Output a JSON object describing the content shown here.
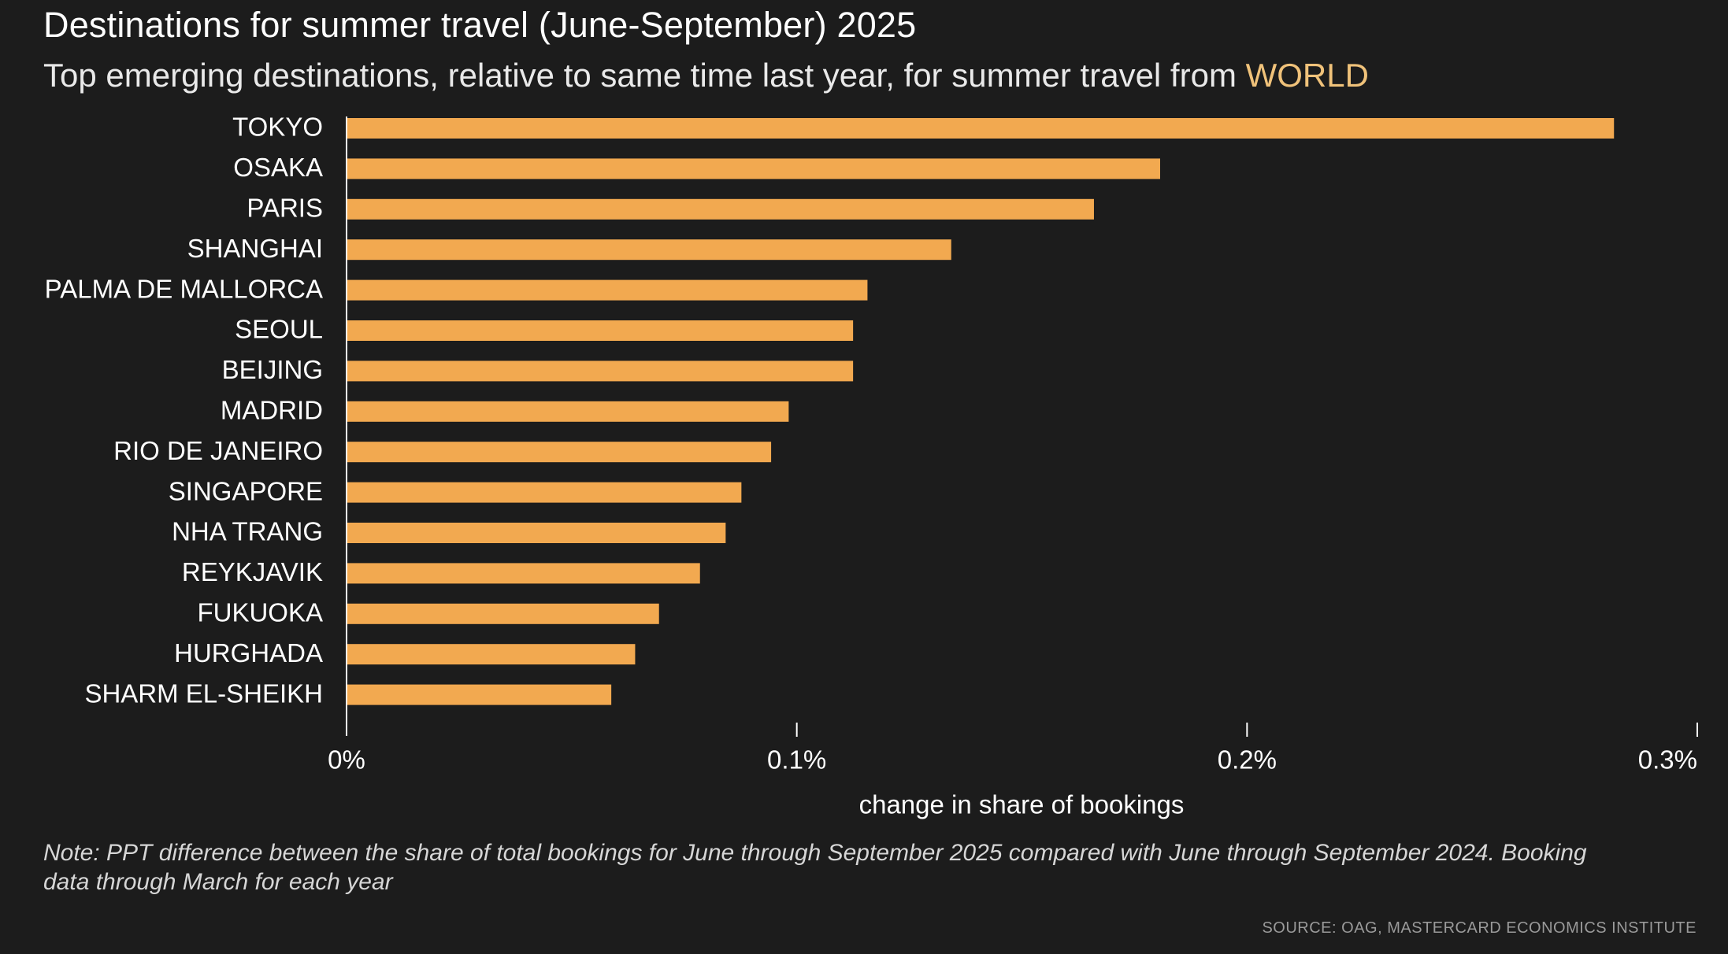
{
  "header": {
    "title": "Destinations for summer travel (June-September) 2025",
    "subtitle_prefix": "Top emerging destinations, relative to same time last year, for summer travel from ",
    "subtitle_highlight": "WORLD"
  },
  "footer": {
    "note_line1": "Note: PPT difference between the share of total bookings for June through September 2025 compared with June through September 2024. Booking",
    "note_line2": "data through March for each year",
    "source": "SOURCE: OAG, MASTERCARD ECONOMICS INSTITUTE"
  },
  "colors": {
    "background": "#1c1c1c",
    "bar": "#f2a950",
    "highlight": "#f0c27a",
    "axis": "#ffffff"
  },
  "chart_data": {
    "type": "bar",
    "orientation": "horizontal",
    "categories": [
      "TOKYO",
      "OSAKA",
      "PARIS",
      "SHANGHAI",
      "PALMA DE MALLORCA",
      "SEOUL",
      "BEIJING",
      "MADRID",
      "RIO DE JANEIRO",
      "SINGAPORE",
      "NHA TRANG",
      "REYKJAVIK",
      "FUKUOKA",
      "HURGHADA",
      "SHARM EL-SHEIKH"
    ],
    "values": [
      0.2815,
      0.1807,
      0.166,
      0.1343,
      0.1157,
      0.1125,
      0.1125,
      0.0982,
      0.0943,
      0.0877,
      0.0842,
      0.0785,
      0.0694,
      0.0641,
      0.0588
    ],
    "unit": "%",
    "xlim": [
      0,
      0.3
    ],
    "xticks": [
      0,
      0.1,
      0.2,
      0.3
    ],
    "xtick_labels": [
      "0%",
      "0.1%",
      "0.2%",
      "0.3%"
    ],
    "xlabel": "change in share of bookings",
    "grid": false,
    "legend": false
  }
}
